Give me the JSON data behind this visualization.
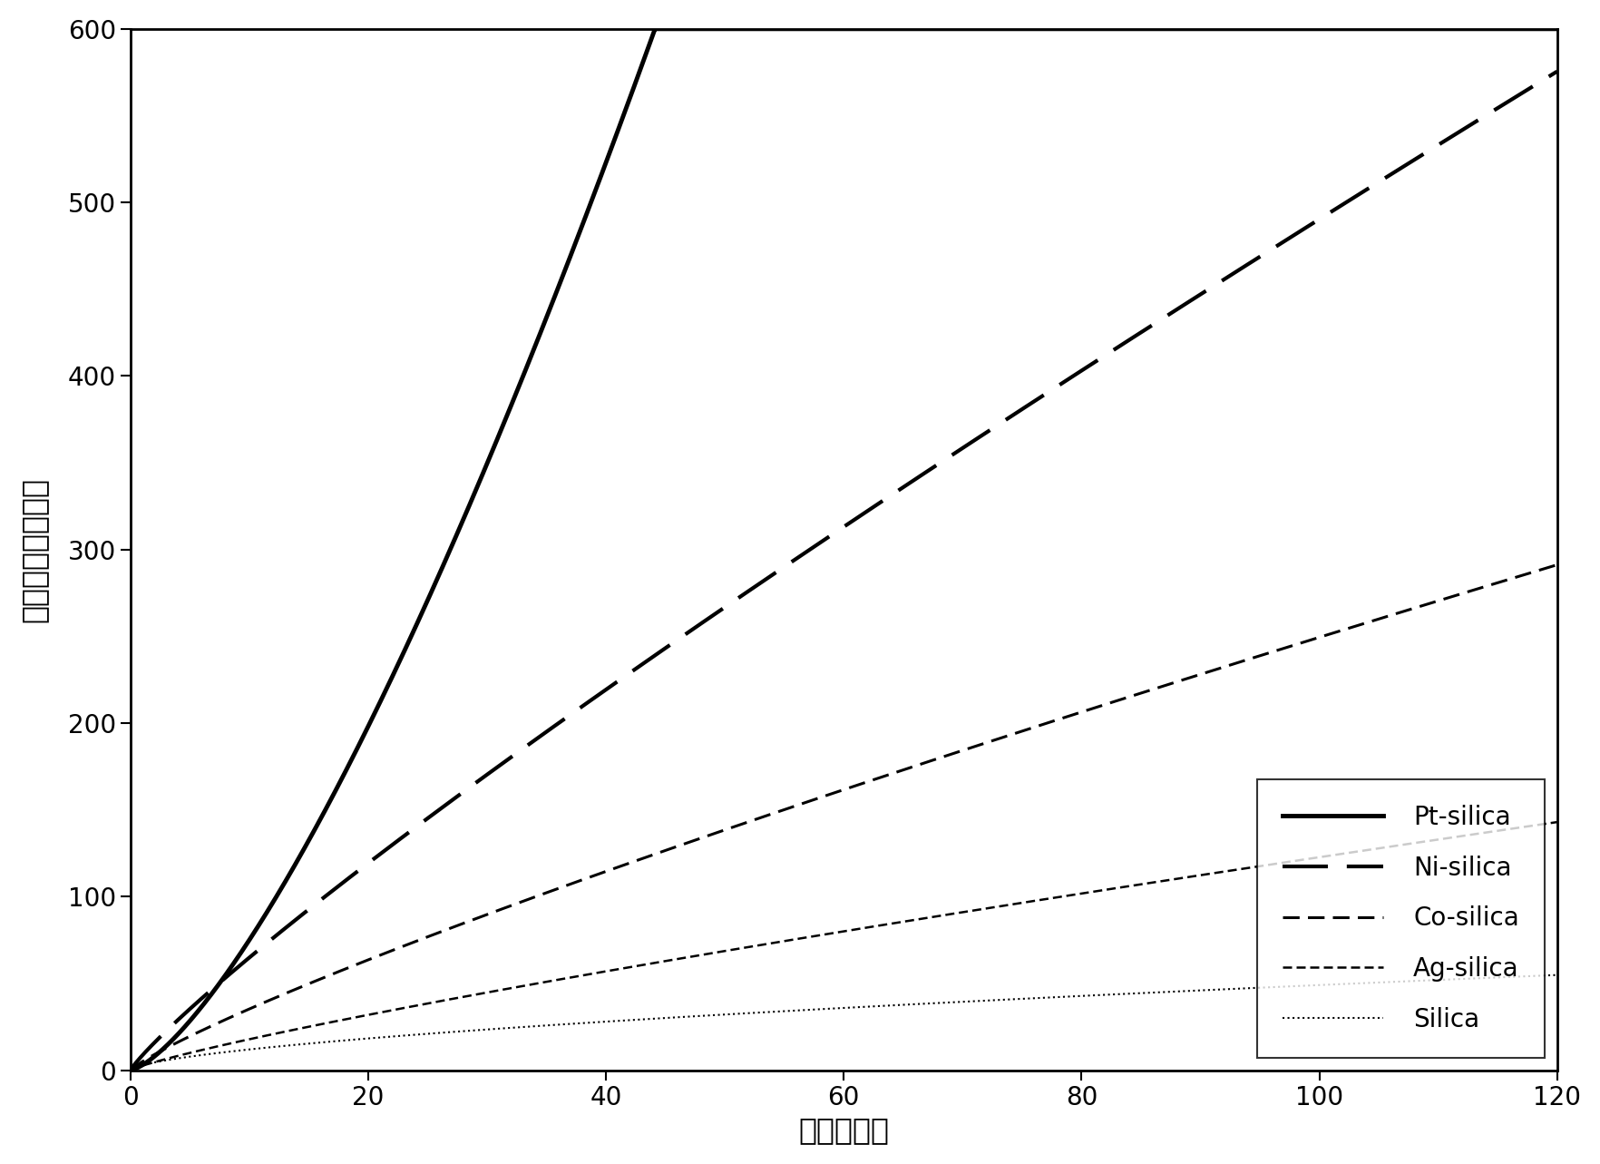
{
  "xlabel": "时间（分）",
  "ylabel_chars": [
    "氢",
    "气",
    "体",
    "积",
    "（",
    "毫",
    "升",
    "）"
  ],
  "ylabel_full": "氢气体积（毫升）",
  "xlim": [
    0,
    120
  ],
  "ylim": [
    0,
    600
  ],
  "xticks": [
    0,
    20,
    40,
    60,
    80,
    100,
    120
  ],
  "yticks": [
    0,
    100,
    200,
    300,
    400,
    500,
    600
  ],
  "background_color": "#ffffff",
  "curves": [
    {
      "label": "Pt-silica",
      "a": 2.99,
      "b": 1.4,
      "lw": 3.5,
      "ls": "solid",
      "color": "black",
      "dash_on": 0,
      "dash_off": 0
    },
    {
      "label": "Ni-silica",
      "a": 8.6,
      "b": 0.878,
      "lw": 3.0,
      "ls": "dashed",
      "color": "black",
      "dash_on": 12,
      "dash_off": 5
    },
    {
      "label": "Co-silica",
      "a": 5.0,
      "b": 0.849,
      "lw": 2.2,
      "ls": "dashed",
      "color": "black",
      "dash_on": 6,
      "dash_off": 3
    },
    {
      "label": "Ag-silica",
      "a": 2.6,
      "b": 0.837,
      "lw": 1.8,
      "ls": "dashed",
      "color": "black",
      "dash_on": 4,
      "dash_off": 2
    },
    {
      "label": "Silica",
      "a": 2.93,
      "b": 0.612,
      "lw": 1.5,
      "ls": "dotted",
      "color": "black",
      "dash_on": 1,
      "dash_off": 3
    }
  ],
  "legend_fontsize": 20,
  "axis_label_fontsize": 24,
  "tick_fontsize": 20,
  "figure_width": 17.64,
  "figure_height": 12.83,
  "dpi": 100
}
